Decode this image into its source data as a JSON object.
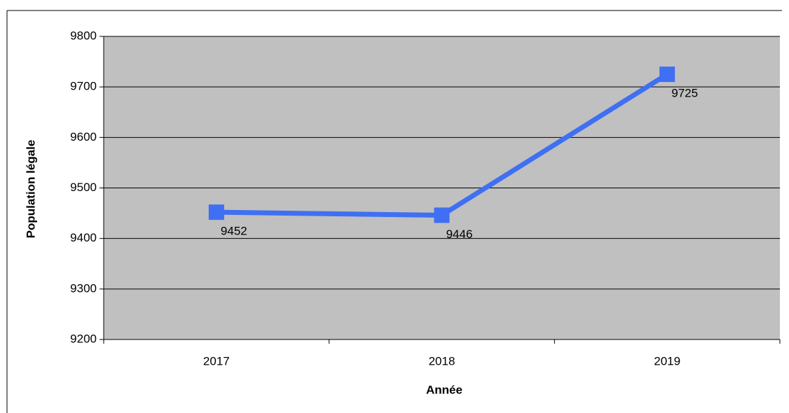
{
  "chart_data": {
    "type": "line",
    "categories": [
      "2017",
      "2018",
      "2019"
    ],
    "series": [
      {
        "name": "Population légale",
        "color": "#3f6ff2",
        "values": [
          9452,
          9446,
          9725
        ]
      }
    ],
    "xlabel": "Année",
    "ylabel": "Population légale",
    "ylim": [
      9200,
      9800
    ],
    "yticks": [
      9200,
      9300,
      9400,
      9500,
      9600,
      9700,
      9800
    ],
    "grid": true,
    "plot_background": "#c0c0c0"
  }
}
